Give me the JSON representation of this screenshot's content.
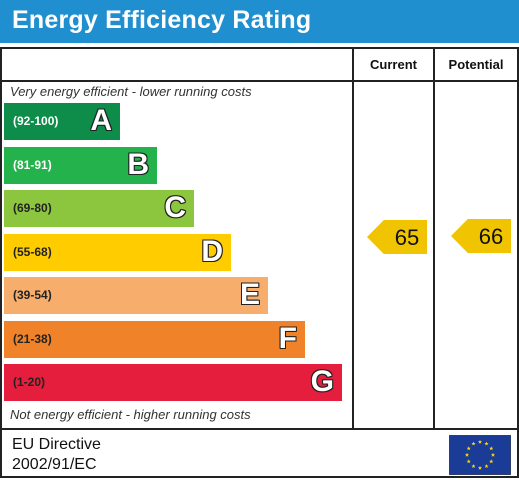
{
  "title": "Energy Efficiency Rating",
  "columns": {
    "current": "Current",
    "potential": "Potential"
  },
  "captions": {
    "top": "Very energy efficient - lower running costs",
    "bottom": "Not energy efficient - higher running costs"
  },
  "footer": {
    "line1": "EU Directive",
    "line2": "2002/91/EC"
  },
  "icons": {
    "eu_flag": "eu-flag-icon"
  },
  "chart_data": {
    "type": "bar",
    "title": "Energy Efficiency Rating",
    "bands": [
      {
        "letter": "A",
        "range": "(92-100)",
        "color": "#0e8c4a",
        "range_color": "#ffffff"
      },
      {
        "letter": "B",
        "range": "(81-91)",
        "color": "#23b24b",
        "range_color": "#ffffff"
      },
      {
        "letter": "C",
        "range": "(69-80)",
        "color": "#8cc63f",
        "range_color": "#222222"
      },
      {
        "letter": "D",
        "range": "(55-68)",
        "color": "#ffcc00",
        "range_color": "#222222"
      },
      {
        "letter": "E",
        "range": "(39-54)",
        "color": "#f7ad6b",
        "range_color": "#222222"
      },
      {
        "letter": "F",
        "range": "(21-38)",
        "color": "#f0832a",
        "range_color": "#222222"
      },
      {
        "letter": "G",
        "range": "(1-20)",
        "color": "#e41e3c",
        "range_color": "#222222"
      }
    ],
    "current": 65,
    "potential": 66,
    "rating_color": "#f0c400"
  }
}
